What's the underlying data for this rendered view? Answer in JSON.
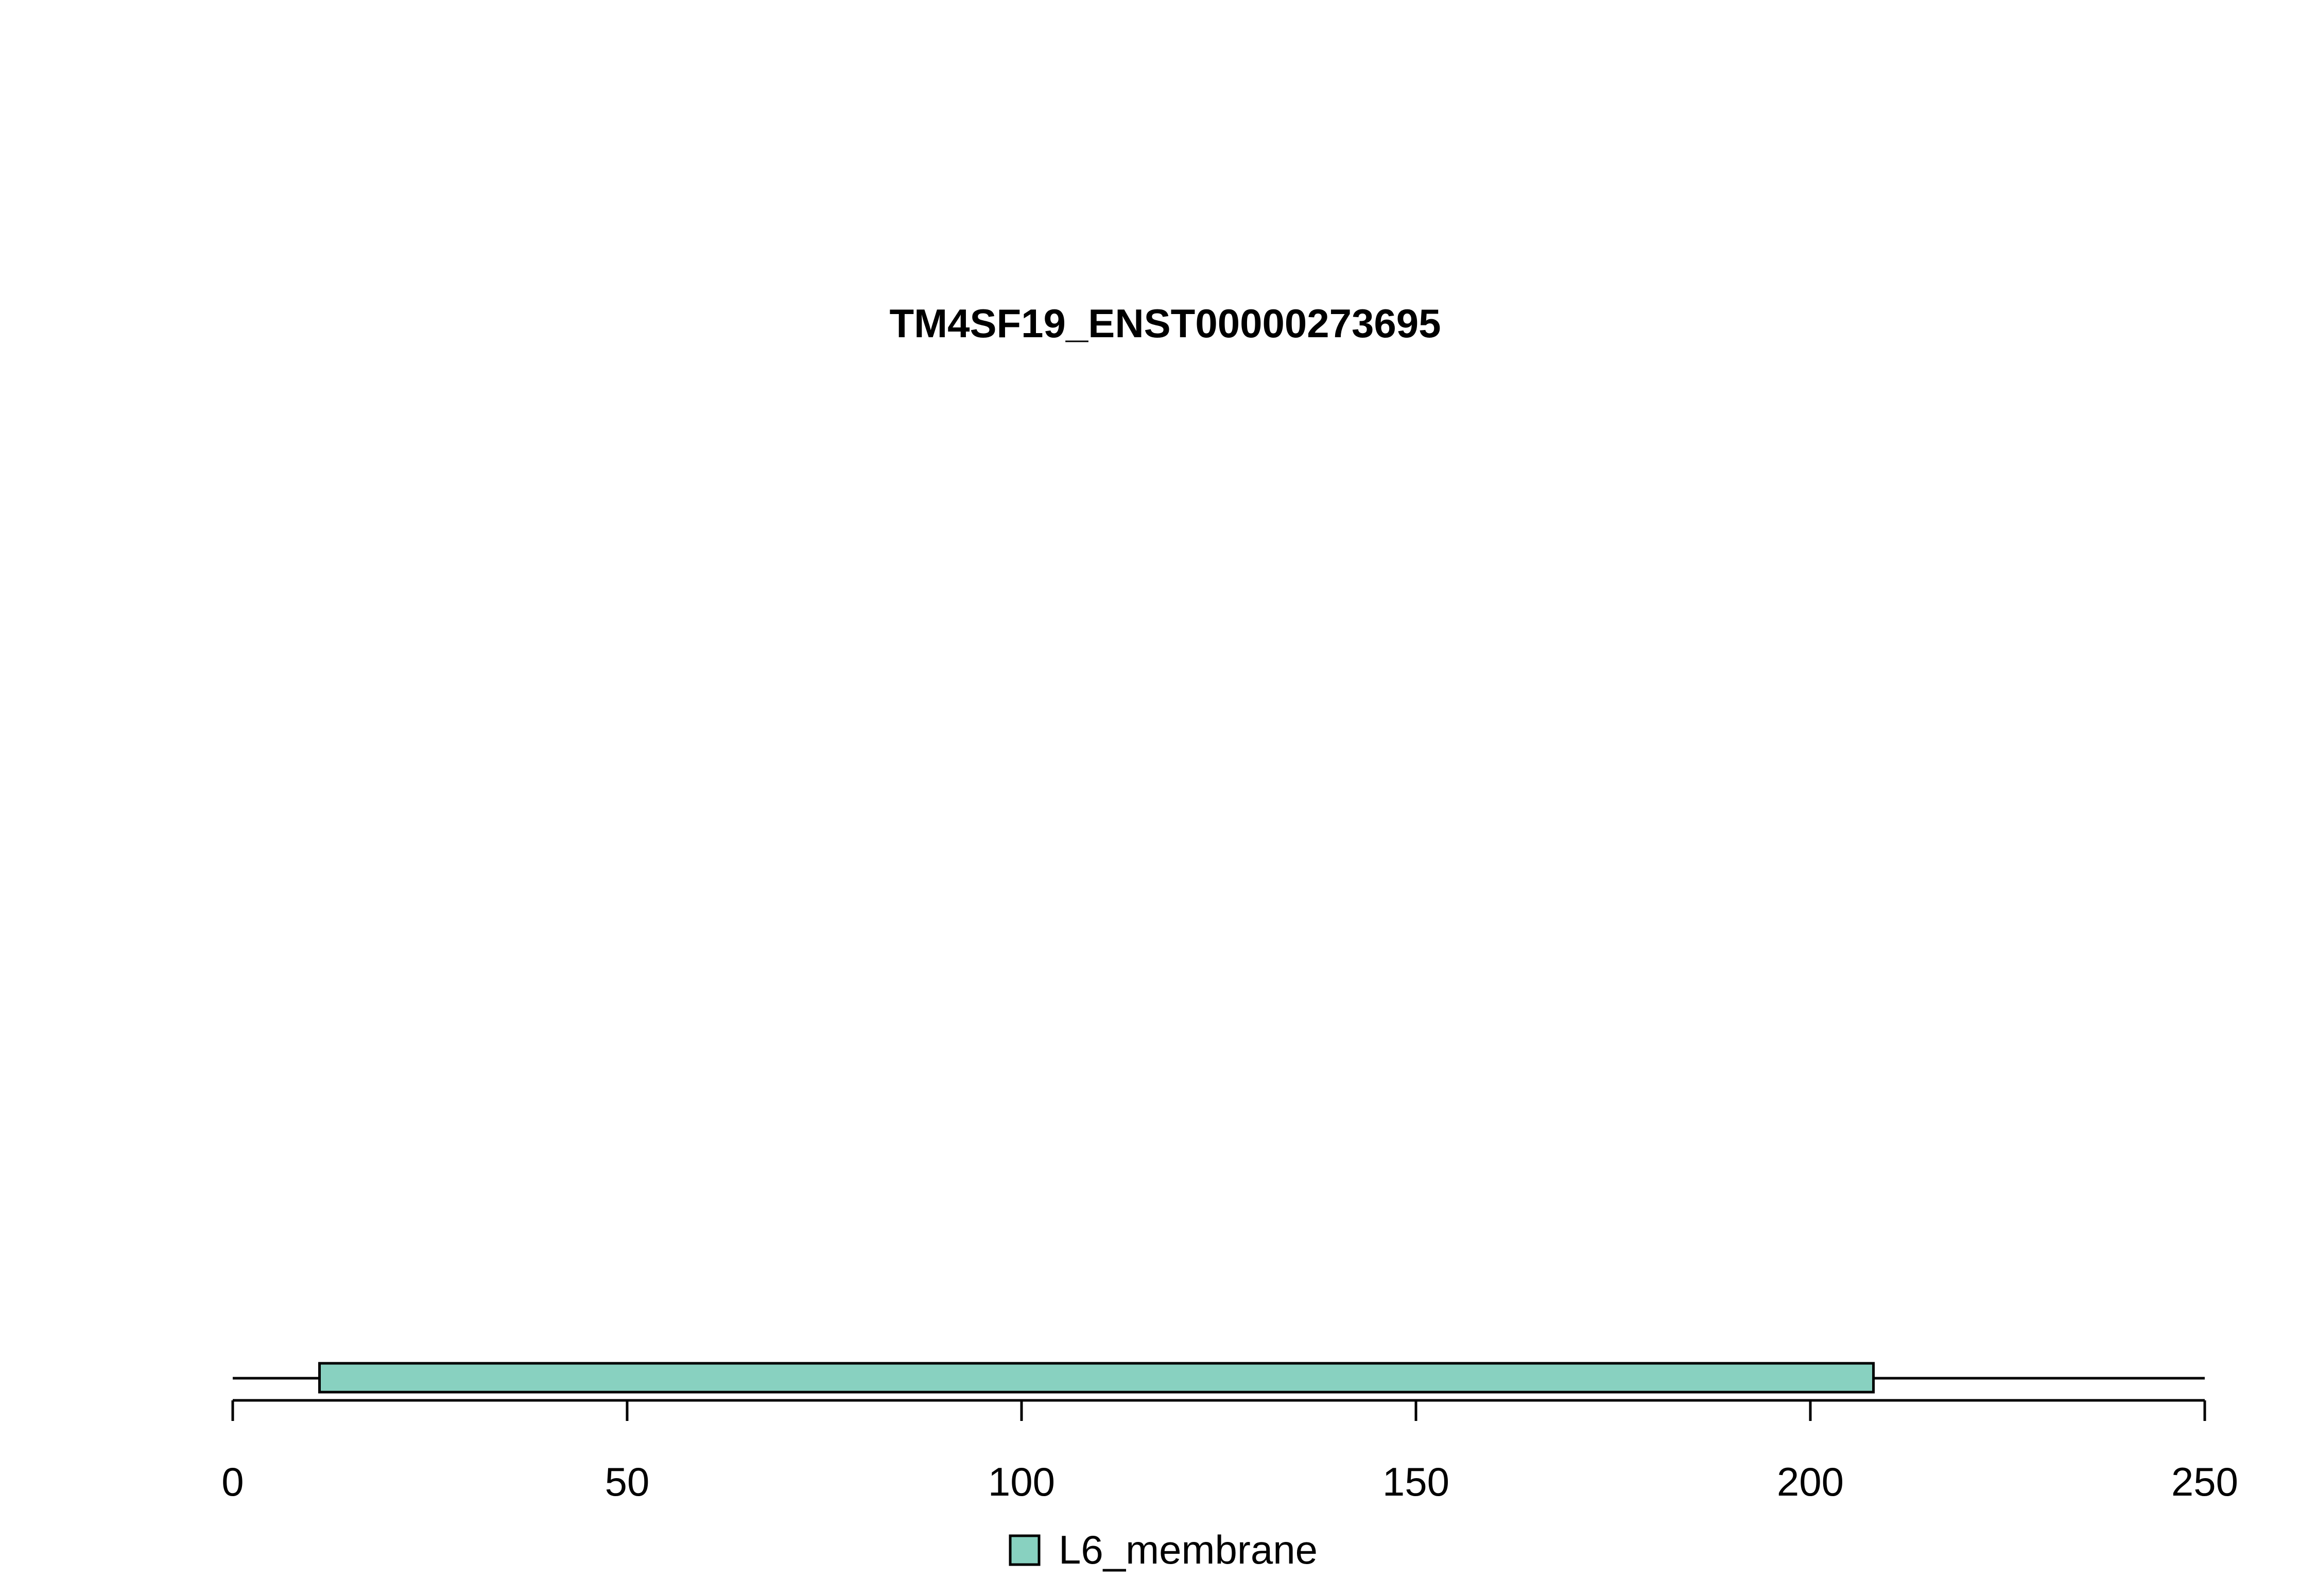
{
  "chart_data": {
    "type": "domain-map",
    "title": "TM4SF19_ENST00000273695",
    "xlim": [
      0,
      250
    ],
    "protein_length": 250,
    "x_ticks": [
      0,
      50,
      100,
      150,
      200,
      250
    ],
    "domains": [
      {
        "name": "L6_membrane",
        "start": 11,
        "end": 208,
        "color": "#88d1c0"
      }
    ],
    "legend": [
      {
        "label": "L6_membrane",
        "color": "#88d1c0"
      }
    ]
  }
}
